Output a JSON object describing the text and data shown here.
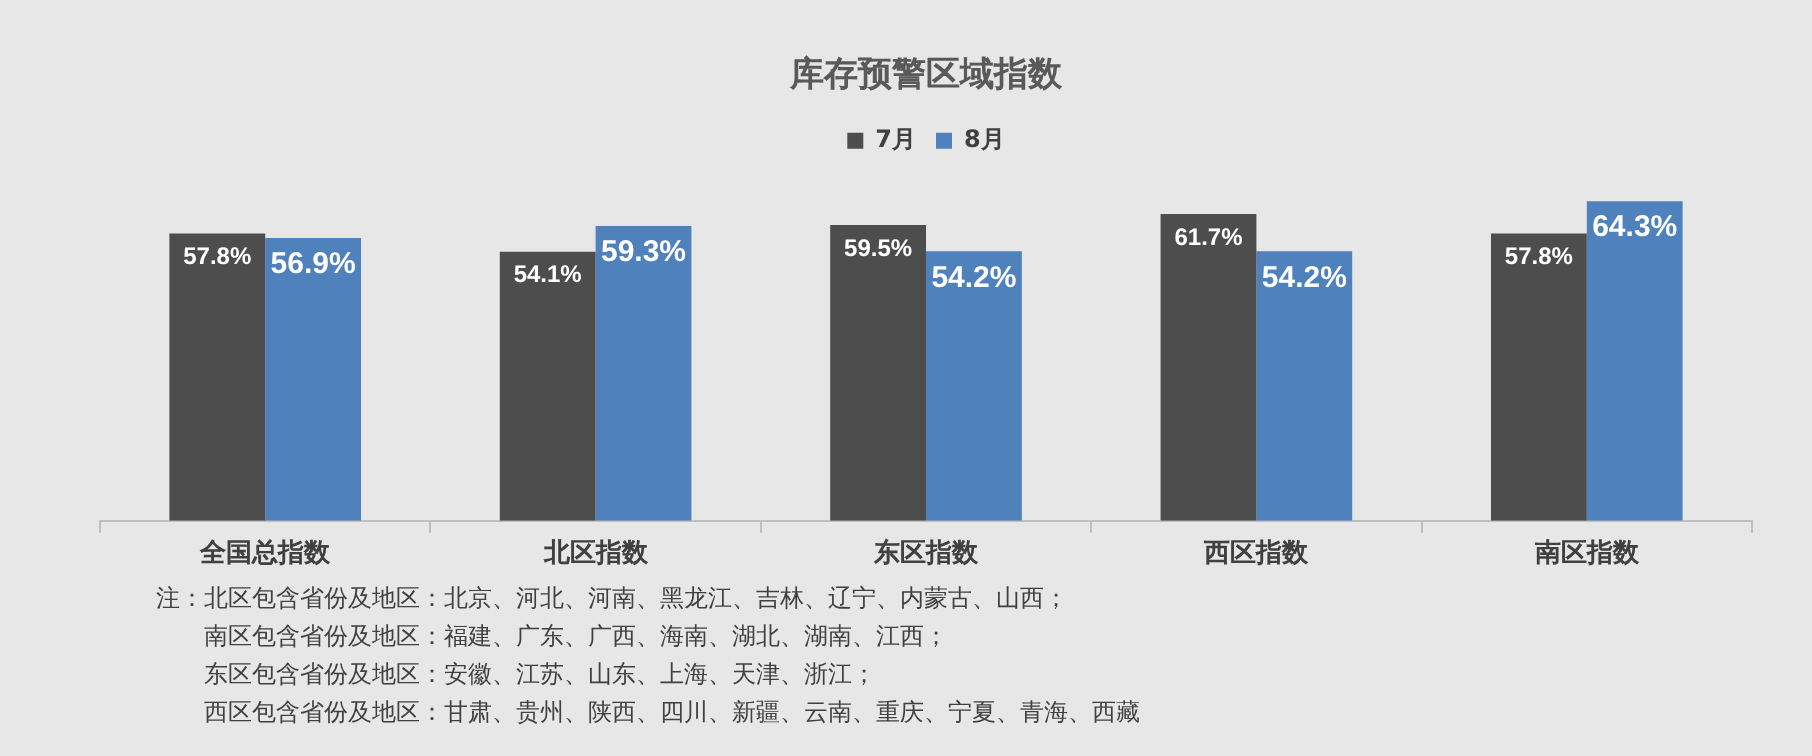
{
  "chart_data": {
    "type": "bar",
    "title": "库存预警区域指数",
    "categories": [
      "全国总指数",
      "北区指数",
      "东区指数",
      "西区指数",
      "南区指数"
    ],
    "series": [
      {
        "name": "7月",
        "color": "#4d4d4d",
        "values": [
          57.8,
          54.1,
          59.5,
          61.7,
          57.8
        ],
        "value_labels": [
          "57.8%",
          "54.1%",
          "59.5%",
          "61.7%",
          "57.8%"
        ]
      },
      {
        "name": "8月",
        "color": "#4f81bd",
        "values": [
          56.9,
          59.3,
          54.2,
          54.2,
          64.3
        ],
        "value_labels": [
          "56.9%",
          "59.3%",
          "54.2%",
          "54.2%",
          "64.3%"
        ]
      }
    ],
    "tick_labels": "x",
    "legend": "top",
    "annotations": [
      "注：北区包含省份及地区：北京、河北、河南、黑龙江、吉林、辽宁、内蒙古、山西；",
      "南区包含省份及地区：福建、广东、广西、海南、湖北、湖南、江西；",
      "东区包含省份及地区：安徽、江苏、山东、上海、天津、浙江；",
      "西区包含省份及地区：甘肃、贵州、陕西、四川、新疆、云南、重庆、宁夏、青海、西藏"
    ]
  }
}
